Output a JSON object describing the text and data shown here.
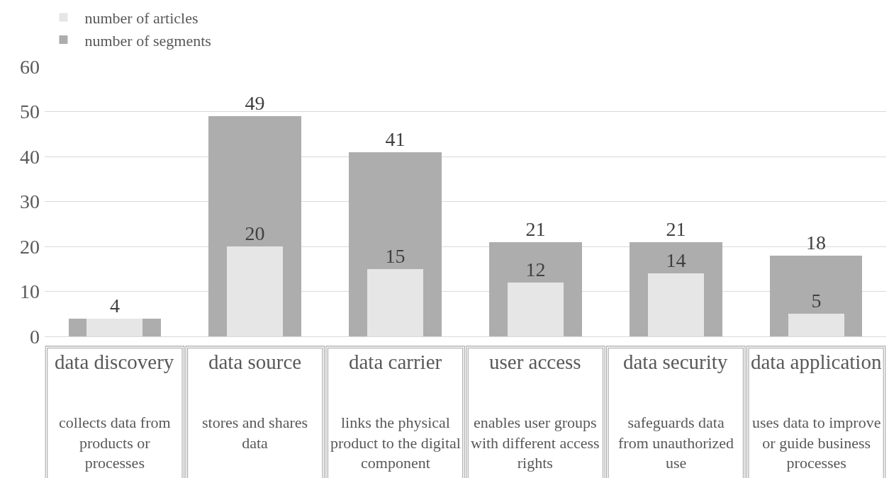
{
  "chart_data": {
    "type": "bar",
    "categories": [
      "data discovery",
      "data source",
      "data carrier",
      "user access",
      "data security",
      "data application"
    ],
    "series": [
      {
        "name": "number of articles",
        "color": "#e6e6e6",
        "values": [
          4,
          20,
          15,
          12,
          14,
          5
        ],
        "value_labels": [
          null,
          "20",
          "15",
          "12",
          "14",
          "5"
        ]
      },
      {
        "name": "number of segments",
        "color": "#adadad",
        "values": [
          4,
          49,
          41,
          21,
          21,
          18
        ],
        "value_labels": [
          "4",
          "49",
          "41",
          "21",
          "21",
          "18"
        ]
      }
    ],
    "ylim": [
      0,
      60
    ],
    "yticks": [
      0,
      10,
      20,
      30,
      40,
      50,
      60
    ],
    "grid": "y",
    "legend": "top left",
    "annotations": [
      "collects data from\nproducts or\nprocesses",
      "stores and shares\ndata",
      "links the physical\nproduct to the digital\ncomponent",
      "enables user groups\nwith different access\nrights",
      "safeguards data\nfrom unauthorized\nuse",
      "uses data to improve\nor guide business\nprocesses"
    ]
  }
}
